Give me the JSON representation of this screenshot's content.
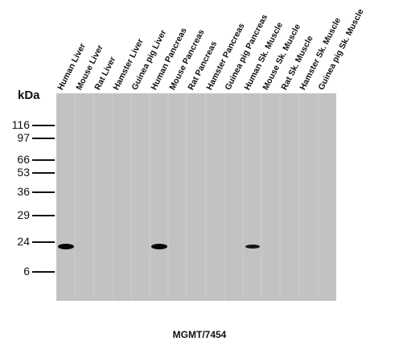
{
  "lanes": [
    "Human Liver",
    "Mouse Liver",
    "Rat Liver",
    "Hamster Liver",
    "Guinea pig Liver",
    "Human Pancreas",
    "Mouse Pancreas",
    "Rat Pancreas",
    "Hamster Pancreas",
    "Guinea pig Pancreas",
    "Human Sk. Muscle",
    "Mouse Sk. Muscle",
    "Rat Sk. Muscle",
    "Hamster Sk. Muscle",
    "Guinea pig Sk. Muscle"
  ],
  "unit_label": "kDa",
  "markers": [
    "116",
    "97",
    "66",
    "53",
    "36",
    "29",
    "24",
    "6"
  ],
  "bands": [
    {
      "lane": "Human Liver",
      "marker": "24",
      "intensity": "strong"
    },
    {
      "lane": "Human Pancreas",
      "marker": "24",
      "intensity": "strong"
    },
    {
      "lane": "Human Sk. Muscle",
      "marker": "24",
      "intensity": "medium"
    }
  ],
  "caption": "MGMT/7454"
}
